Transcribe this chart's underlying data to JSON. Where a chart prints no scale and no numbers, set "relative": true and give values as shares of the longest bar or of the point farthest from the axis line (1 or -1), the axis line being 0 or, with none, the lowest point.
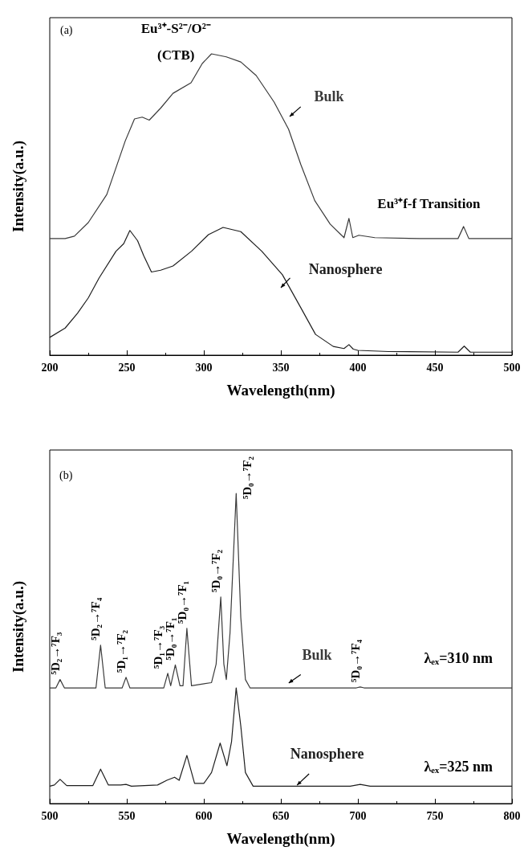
{
  "chart_data": [
    {
      "type": "line",
      "xlabel": "Wavelength(nm)",
      "ylabel": "Intensity(a.u.)",
      "relative": true,
      "xlim": [
        200,
        500
      ],
      "xticks": [
        200,
        250,
        300,
        350,
        400,
        450,
        500
      ],
      "annotations": [
        "(a)",
        "Eu³⁺-S²⁻/O²⁻",
        "(CTB)",
        "Eu³⁺f-f Transition"
      ],
      "series": [
        {
          "name": "Bulk",
          "color": "#3a3a3a",
          "x": [
            200,
            210,
            216,
            225,
            237,
            249,
            255,
            260,
            264.6,
            272,
            280,
            291.7,
            299,
            305,
            314.6,
            324,
            334,
            345.6,
            355,
            363,
            372,
            382,
            391,
            394.2,
            396.7,
            400.6,
            411,
            440,
            465,
            468.6,
            472,
            500
          ],
          "values": [
            0.387,
            0.387,
            0.395,
            0.44,
            0.533,
            0.711,
            0.784,
            0.79,
            0.78,
            0.82,
            0.869,
            0.904,
            0.968,
            1.0,
            0.99,
            0.973,
            0.928,
            0.84,
            0.75,
            0.632,
            0.513,
            0.435,
            0.39,
            0.454,
            0.39,
            0.398,
            0.39,
            0.387,
            0.387,
            0.427,
            0.387,
            0.387
          ]
        },
        {
          "name": "Nanosphere",
          "color": "#1e1e1e",
          "x": [
            200,
            210,
            218,
            225,
            232,
            243,
            248,
            252,
            257,
            261,
            266,
            272,
            280,
            292,
            303,
            312.5,
            324,
            337.6,
            351,
            363,
            372.5,
            384,
            391,
            394.2,
            397,
            400,
            420,
            465,
            469,
            473,
            500
          ],
          "values": [
            0.059,
            0.09,
            0.139,
            0.19,
            0.256,
            0.345,
            0.37,
            0.414,
            0.38,
            0.33,
            0.276,
            0.282,
            0.296,
            0.345,
            0.4,
            0.424,
            0.41,
            0.345,
            0.267,
            0.157,
            0.069,
            0.029,
            0.022,
            0.035,
            0.02,
            0.016,
            0.012,
            0.01,
            0.03,
            0.01,
            0.01
          ]
        }
      ]
    },
    {
      "type": "line",
      "xlabel": "Wavelength(nm)",
      "ylabel": "Intensity(a.u.)",
      "relative": true,
      "xlim": [
        500,
        800
      ],
      "xticks": [
        500,
        550,
        600,
        650,
        700,
        750,
        800
      ],
      "annotations": [
        "(b)",
        "λₑₓ=310 nm",
        "λₑₓ=325 nm",
        {
          "text": "⁵D₂→⁷F₃",
          "x": 506.7,
          "y": 0.4
        },
        {
          "text": "⁵D₂→⁷F₄",
          "x": 533,
          "y": 0.511
        },
        {
          "text": "⁵D₁→⁷F₂",
          "x": 549.5,
          "y": 0.407
        },
        {
          "text": "⁵D₁→⁷F₃",
          "x": 576.6,
          "y": 0.42
        },
        {
          "text": "⁵D₀→⁷F₁",
          "x": 581.5,
          "y": 0.447
        },
        {
          "text": "⁵D₀→⁷F₁",
          "x": 589,
          "y": 0.565
        },
        {
          "text": "⁵D₀→⁷F₂",
          "x": 611,
          "y": 0.666
        },
        {
          "text": "⁵D₀→⁷F₂",
          "x": 621,
          "y": 1.0
        },
        {
          "text": "⁵D₀→⁷F₄",
          "x": 701.5,
          "y": 0.376
        }
      ],
      "series": [
        {
          "name": "Bulk",
          "color": "#3a3a3a",
          "x": [
            500,
            504,
            506.7,
            509.5,
            530,
            533,
            536,
            547,
            549.5,
            552,
            574,
            576.6,
            578.5,
            581.5,
            584.5,
            586.5,
            589,
            592,
            605,
            608,
            611,
            613,
            614.6,
            617,
            621,
            624,
            627,
            630,
            699,
            701.5,
            704,
            800
          ],
          "values": [
            0.373,
            0.373,
            0.4,
            0.373,
            0.373,
            0.511,
            0.373,
            0.373,
            0.407,
            0.373,
            0.373,
            0.42,
            0.38,
            0.447,
            0.38,
            0.38,
            0.565,
            0.38,
            0.39,
            0.45,
            0.666,
            0.45,
            0.4,
            0.55,
            1.0,
            0.6,
            0.4,
            0.373,
            0.373,
            0.376,
            0.373,
            0.373
          ]
        },
        {
          "name": "Nanosphere",
          "color": "#1e1e1e",
          "x": [
            500,
            503,
            506.7,
            511,
            528,
            533,
            538,
            546,
            549.5,
            553,
            570,
            576,
            581,
            584,
            589,
            594,
            600,
            605,
            610.6,
            615,
            618,
            621,
            624,
            627,
            632,
            695,
            701.5,
            708,
            800
          ],
          "values": [
            0.056,
            0.06,
            0.078,
            0.058,
            0.058,
            0.111,
            0.06,
            0.06,
            0.062,
            0.056,
            0.06,
            0.075,
            0.085,
            0.075,
            0.155,
            0.065,
            0.065,
            0.1,
            0.195,
            0.122,
            0.2,
            0.373,
            0.25,
            0.1,
            0.056,
            0.056,
            0.062,
            0.056,
            0.056
          ]
        }
      ]
    }
  ]
}
